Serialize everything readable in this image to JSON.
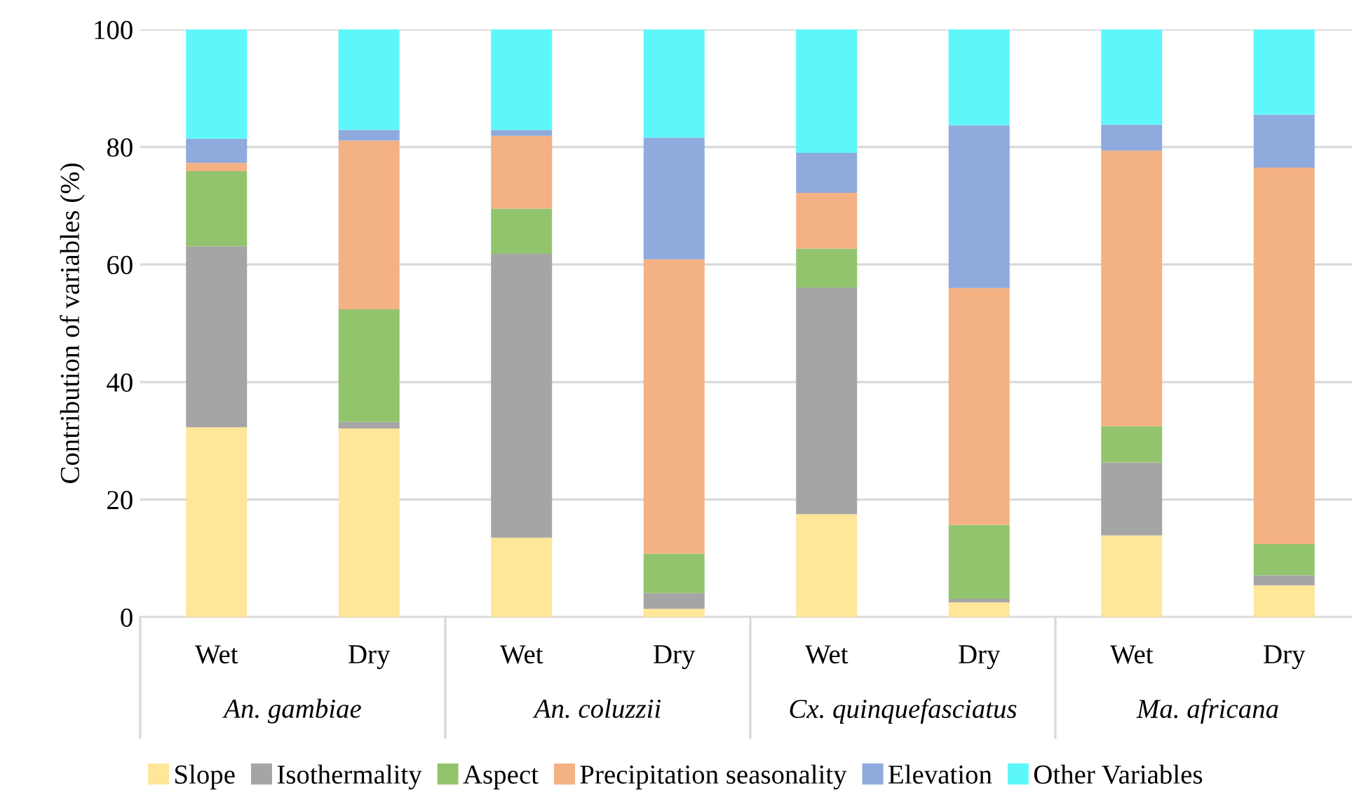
{
  "chart_data": {
    "type": "bar",
    "stacked": true,
    "ylabel": "Contribution of variables (%)",
    "categories": [
      "Wet",
      "Dry",
      "Wet",
      "Dry",
      "Wet",
      "Dry",
      "Wet",
      "Dry"
    ],
    "annotations": [
      "An. gambiae",
      "An. coluzzii",
      "Cx. quinquefasciatus",
      "Ma. africana"
    ],
    "series": [
      {
        "name": "Slope",
        "color": "#ffe699",
        "values": [
          32.3,
          32.1,
          13.5,
          1.4,
          17.5,
          2.5,
          13.9,
          5.4
        ]
      },
      {
        "name": "Isothermality",
        "color": "#a5a5a5",
        "values": [
          30.8,
          1.1,
          48.3,
          2.7,
          38.6,
          0.6,
          12.4,
          1.7
        ]
      },
      {
        "name": "Aspect",
        "color": "#92c46e",
        "values": [
          12.8,
          19.2,
          7.7,
          6.7,
          6.6,
          12.6,
          6.2,
          5.3
        ]
      },
      {
        "name": "Precipitation seasonality",
        "color": "#f4b183",
        "values": [
          1.4,
          28.7,
          12.4,
          50.1,
          9.5,
          40.3,
          46.9,
          64.1
        ]
      },
      {
        "name": "Elevation",
        "color": "#8faadc",
        "values": [
          4.1,
          1.8,
          1.0,
          20.7,
          6.8,
          27.7,
          4.4,
          9.0
        ]
      },
      {
        "name": "Other Variables",
        "color": "#5ef7f9",
        "values": [
          18.6,
          17.1,
          17.1,
          18.4,
          21.0,
          16.3,
          16.2,
          14.5
        ]
      }
    ],
    "ylim": [
      0,
      100
    ],
    "yticks": [
      0,
      20,
      40,
      60,
      80,
      100
    ],
    "grid": "y",
    "legend": "bottom"
  }
}
